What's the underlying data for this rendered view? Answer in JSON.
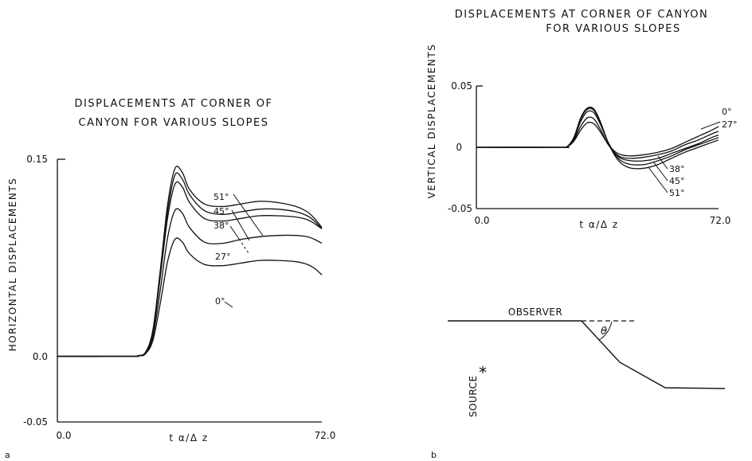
{
  "figure": {
    "panel_a_label": "a",
    "panel_b_label": "b"
  },
  "chart_data": [
    {
      "type": "line",
      "panel": "a",
      "title_lines": [
        "DISPLACEMENTS AT CORNER OF",
        "CANYON FOR VARIOUS SLOPES"
      ],
      "xlabel": "t α/Δ z",
      "ylabel": "HORIZONTAL DISPLACEMENTS",
      "xlim": [
        0,
        72
      ],
      "ylim": [
        -0.05,
        0.15
      ],
      "xticks": [
        "0.0",
        "72.0"
      ],
      "yticks": [
        "0.15",
        "0.0",
        "-0.05"
      ],
      "grid": false,
      "series": [
        {
          "name": "51°",
          "x": [
            0,
            20,
            22,
            24,
            26,
            28,
            30,
            32,
            34,
            36,
            40,
            45,
            50,
            55,
            60,
            65,
            68,
            70,
            72
          ],
          "y": [
            0,
            0,
            0.0005,
            0.003,
            0.02,
            0.065,
            0.115,
            0.143,
            0.14,
            0.127,
            0.116,
            0.114,
            0.116,
            0.118,
            0.117,
            0.114,
            0.11,
            0.105,
            0.098
          ]
        },
        {
          "name": "45°",
          "x": [
            0,
            20,
            22,
            24,
            26,
            28,
            30,
            32,
            34,
            36,
            40,
            45,
            50,
            55,
            60,
            65,
            68,
            70,
            72
          ],
          "y": [
            0,
            0,
            0.0005,
            0.003,
            0.019,
            0.063,
            0.11,
            0.138,
            0.135,
            0.123,
            0.111,
            0.108,
            0.11,
            0.112,
            0.112,
            0.11,
            0.107,
            0.103,
            0.097
          ]
        },
        {
          "name": "38°",
          "x": [
            0,
            20,
            22,
            24,
            26,
            28,
            30,
            32,
            34,
            36,
            40,
            45,
            50,
            55,
            60,
            65,
            68,
            70,
            72
          ],
          "y": [
            0,
            0,
            0.0005,
            0.003,
            0.018,
            0.06,
            0.105,
            0.131,
            0.129,
            0.117,
            0.105,
            0.103,
            0.105,
            0.107,
            0.107,
            0.106,
            0.104,
            0.101,
            0.097
          ]
        },
        {
          "name": "27°",
          "x": [
            0,
            20,
            22,
            24,
            26,
            28,
            30,
            32,
            34,
            36,
            40,
            45,
            50,
            55,
            60,
            65,
            68,
            70,
            72
          ],
          "y": [
            0,
            0,
            0.0004,
            0.002,
            0.015,
            0.05,
            0.09,
            0.111,
            0.109,
            0.098,
            0.087,
            0.086,
            0.089,
            0.091,
            0.092,
            0.092,
            0.091,
            0.089,
            0.086
          ]
        },
        {
          "name": "0°",
          "x": [
            0,
            20,
            22,
            24,
            26,
            28,
            30,
            32,
            34,
            36,
            40,
            45,
            50,
            55,
            60,
            65,
            68,
            70,
            72
          ],
          "y": [
            0,
            0,
            0.0003,
            0.002,
            0.012,
            0.04,
            0.072,
            0.089,
            0.087,
            0.078,
            0.07,
            0.069,
            0.071,
            0.073,
            0.073,
            0.072,
            0.07,
            0.067,
            0.062
          ]
        }
      ]
    },
    {
      "type": "line",
      "panel": "b",
      "title_lines": [
        "DISPLACEMENTS AT CORNER OF CANYON",
        "FOR VARIOUS SLOPES"
      ],
      "xlabel": "t α/Δ z",
      "ylabel": "VERTICAL DISPLACEMENTS",
      "xlim": [
        0,
        72
      ],
      "ylim": [
        -0.05,
        0.05
      ],
      "xticks": [
        "0.0",
        "72.0"
      ],
      "yticks": [
        "0.05",
        "0",
        "-0.05"
      ],
      "grid": false,
      "series": [
        {
          "name": "0°",
          "x": [
            0,
            25,
            27,
            29,
            31,
            33,
            35,
            37,
            39,
            41,
            43,
            46,
            50,
            54,
            58,
            62,
            66,
            70,
            72
          ],
          "y": [
            0,
            0,
            0.0005,
            0.005,
            0.014,
            0.02,
            0.019,
            0.012,
            0.003,
            -0.003,
            -0.006,
            -0.007,
            -0.006,
            -0.004,
            -0.001,
            0.004,
            0.009,
            0.014,
            0.017
          ]
        },
        {
          "name": "27°",
          "x": [
            0,
            25,
            27,
            29,
            31,
            33,
            35,
            37,
            39,
            41,
            43,
            46,
            50,
            54,
            58,
            62,
            66,
            70,
            72
          ],
          "y": [
            0,
            0,
            0.0005,
            0.006,
            0.017,
            0.024,
            0.023,
            0.014,
            0.003,
            -0.004,
            -0.008,
            -0.009,
            -0.008,
            -0.006,
            -0.003,
            0.002,
            0.006,
            0.011,
            0.013
          ]
        },
        {
          "name": "38°",
          "x": [
            0,
            25,
            27,
            29,
            31,
            33,
            35,
            37,
            39,
            41,
            43,
            46,
            50,
            54,
            58,
            62,
            66,
            70,
            72
          ],
          "y": [
            0,
            0,
            0.0006,
            0.007,
            0.021,
            0.029,
            0.028,
            0.018,
            0.005,
            -0.004,
            -0.009,
            -0.011,
            -0.011,
            -0.009,
            -0.005,
            -0.001,
            0.003,
            0.008,
            0.01
          ]
        },
        {
          "name": "45°",
          "x": [
            0,
            25,
            27,
            29,
            31,
            33,
            35,
            37,
            39,
            41,
            43,
            46,
            50,
            54,
            58,
            62,
            66,
            70,
            72
          ],
          "y": [
            0,
            0,
            0.0006,
            0.008,
            0.023,
            0.031,
            0.03,
            0.019,
            0.005,
            -0.005,
            -0.011,
            -0.014,
            -0.014,
            -0.011,
            -0.007,
            -0.002,
            0.002,
            0.006,
            0.008
          ]
        },
        {
          "name": "51°",
          "x": [
            0,
            25,
            27,
            29,
            31,
            33,
            35,
            37,
            39,
            41,
            43,
            46,
            50,
            54,
            58,
            62,
            66,
            70,
            72
          ],
          "y": [
            0,
            0,
            0.0006,
            0.008,
            0.024,
            0.032,
            0.031,
            0.02,
            0.005,
            -0.006,
            -0.013,
            -0.017,
            -0.017,
            -0.014,
            -0.009,
            -0.004,
            0.0,
            0.004,
            0.006
          ]
        }
      ]
    }
  ],
  "diagram": {
    "observer_label": "OBSERVER",
    "source_label": "SOURCE",
    "source_symbol": "*",
    "angle_label": "θ"
  }
}
